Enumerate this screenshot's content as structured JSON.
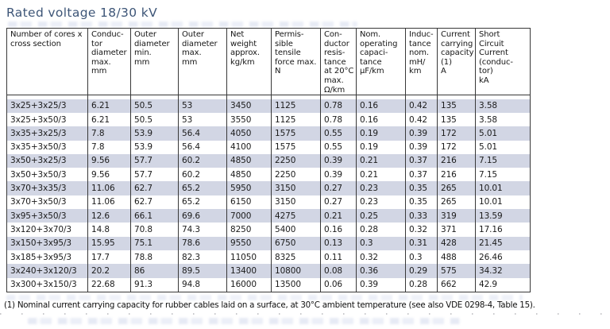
{
  "document": {
    "title": "Rated voltage 18/30 kV",
    "footnote": "(1) Nominal current carrying capacity for rubber cables laid on a surface, at 30°C ambient temperature (see also VDE 0298-4, Table 15)."
  },
  "table": {
    "columns": [
      "Number of cores x\ncross section",
      "Conduc-\ntor\ndiameter\nmax.\nmm",
      "Outer\ndiameter\nmin.\nmm",
      "Outer\ndiameter\nmax.\nmm",
      "Net\nweight\napprox.\nkg/km",
      "Permis-\nsible\ntensile\nforce max.\nN",
      "Con-\nductor\nresis-\ntance\nat 20°C\nmax.\nΩ/km",
      "Nom.\noperating\ncapaci-\ntance\nµF/km",
      "Induc-\ntance\nnom.\nmH/\nkm",
      "Current\ncarrying\ncapacity\n(1)\nA",
      "Short\nCircuit\nCurrent\n(conduc-\ntor)\nkA"
    ],
    "rows": [
      [
        "3x25+3x25/3",
        "6.21",
        "50.5",
        "53",
        "3450",
        "1125",
        "0.78",
        "0.16",
        "0.42",
        "135",
        "3.58"
      ],
      [
        "3x25+3x50/3",
        "6.21",
        "50.5",
        "53",
        "3550",
        "1125",
        "0.78",
        "0.16",
        "0.42",
        "135",
        "3.58"
      ],
      [
        "3x35+3x25/3",
        "7.8",
        "53.9",
        "56.4",
        "4050",
        "1575",
        "0.55",
        "0.19",
        "0.39",
        "172",
        "5.01"
      ],
      [
        "3x35+3x50/3",
        "7.8",
        "53.9",
        "56.4",
        "4100",
        "1575",
        "0.55",
        "0.19",
        "0.39",
        "172",
        "5.01"
      ],
      [
        "3x50+3x25/3",
        "9.56",
        "57.7",
        "60.2",
        "4850",
        "2250",
        "0.39",
        "0.21",
        "0.37",
        "216",
        "7.15"
      ],
      [
        "3x50+3x50/3",
        "9.56",
        "57.7",
        "60.2",
        "4850",
        "2250",
        "0.39",
        "0.21",
        "0.37",
        "216",
        "7.15"
      ],
      [
        "3x70+3x35/3",
        "11.06",
        "62.7",
        "65.2",
        "5950",
        "3150",
        "0.27",
        "0.23",
        "0.35",
        "265",
        "10.01"
      ],
      [
        "3x70+3x50/3",
        "11.06",
        "62.7",
        "65.2",
        "6150",
        "3150",
        "0.27",
        "0.23",
        "0.35",
        "265",
        "10.01"
      ],
      [
        "3x95+3x50/3",
        "12.6",
        "66.1",
        "69.6",
        "7000",
        "4275",
        "0.21",
        "0.25",
        "0.33",
        "319",
        "13.59"
      ],
      [
        "3x120+3x70/3",
        "14.8",
        "70.8",
        "74.3",
        "8250",
        "5400",
        "0.16",
        "0.28",
        "0.32",
        "371",
        "17.16"
      ],
      [
        "3x150+3x95/3",
        "15.95",
        "75.1",
        "78.6",
        "9550",
        "6750",
        "0.13",
        "0.3",
        "0.31",
        "428",
        "21.45"
      ],
      [
        "3x185+3x95/3",
        "17.7",
        "78.8",
        "82.3",
        "11050",
        "8325",
        "0.11",
        "0.32",
        "0.3",
        "488",
        "26.46"
      ],
      [
        "3x240+3x120/3",
        "20.2",
        "86",
        "89.5",
        "13400",
        "10800",
        "0.08",
        "0.36",
        "0.29",
        "575",
        "34.32"
      ],
      [
        "3x300+3x150/3",
        "22.68",
        "91.3",
        "94.8",
        "16000",
        "13500",
        "0.06",
        "0.39",
        "0.28",
        "662",
        "42.9"
      ]
    ]
  },
  "colors": {
    "title_text": "#3d5577",
    "row_stripe": "#d2d6e4",
    "table_border": "#383838",
    "body_text": "#1b1b1b"
  }
}
